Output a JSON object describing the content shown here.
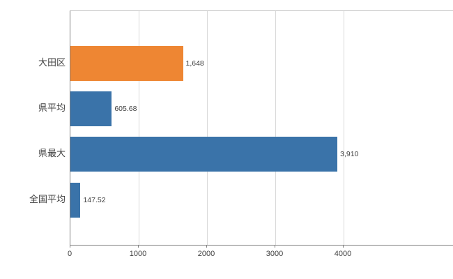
{
  "chart_data": {
    "type": "bar",
    "orientation": "horizontal",
    "title": "",
    "categories": [
      "大田区",
      "県平均",
      "県最大",
      "全国平均"
    ],
    "values": [
      1648,
      605.68,
      3910,
      147.52
    ],
    "value_labels": [
      "1,648",
      "605.68",
      "3,910",
      "147.52"
    ],
    "bar_colors": [
      "#ee8633",
      "#3a73a9",
      "#3a73a9",
      "#3a73a9"
    ],
    "x_ticks": [
      0,
      1000,
      2000,
      3000,
      4000
    ],
    "x_tick_labels": [
      "0",
      "1000",
      "2000",
      "3000",
      "4000"
    ],
    "xlim": [
      0,
      4700
    ],
    "ylabel": "",
    "xlabel": "",
    "grid": true,
    "legend": "none"
  },
  "colors": {
    "orange": "#ee8633",
    "blue": "#3a73a9",
    "gridline": "#d9d9d9",
    "axis": "#808080",
    "text": "#404040"
  }
}
